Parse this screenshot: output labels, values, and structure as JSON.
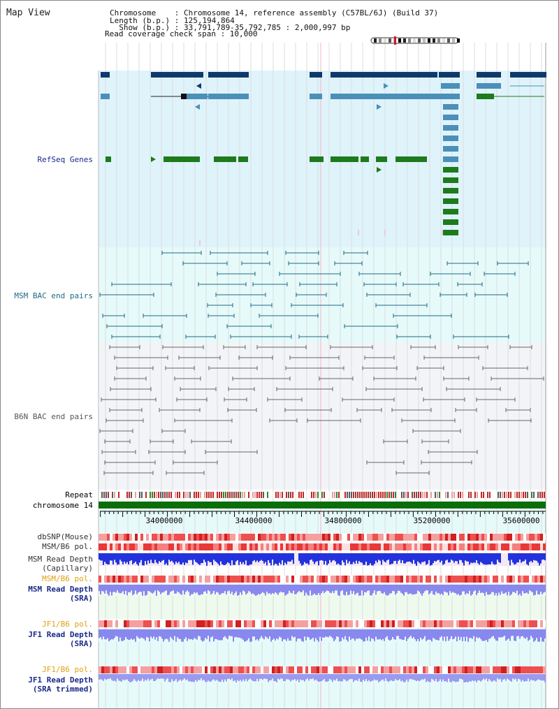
{
  "title": "Map View",
  "header": {
    "chromosome_line": "Chromosome    : Chromosome 14, reference assembly (C57BL/6J) (Build 37)",
    "length_line": "Length (b.p.) : 125,194,864",
    "show_line": "  Show (b.p.) : 33,791,789-35,792,785 : 2,000,997 bp",
    "read_coverage_line": "Read coverage check span : 10,000"
  },
  "tracks": {
    "refseq": "RefSeq Genes",
    "msm_bac": "MSM BAC end pairs",
    "b6n_bac": "B6N BAC end pairs",
    "repeat": "Repeat",
    "chromosome": "chromosome 14",
    "dbsnp": "dbSNP(Mouse)",
    "msm_b6_pol_1": "MSM/B6 pol.",
    "msm_read_depth_cap": "MSM Read Depth",
    "msm_read_depth_cap_sub": "(Capillary)",
    "msm_b6_pol_2": "MSM/B6 pol.",
    "msm_read_depth_sra": "MSM Read Depth",
    "msm_read_depth_sra_sub": "(SRA)",
    "jf1_b6_pol_1": "JF1/B6 pol.",
    "jf1_read_depth_sra": "JF1 Read Depth",
    "jf1_read_depth_sra_sub": "(SRA)",
    "jf1_b6_pol_2": "JF1/B6 pol.",
    "jf1_read_depth_trim": "JF1 Read Depth",
    "jf1_read_depth_trim_sub": "(SRA trimmed)"
  },
  "axis": {
    "range_bp": [
      33791789,
      35792785
    ],
    "ticks": [
      "34000000",
      "34400000",
      "34800000",
      "35200000",
      "35600000"
    ],
    "tick_values": [
      34000000,
      34400000,
      34800000,
      35200000,
      35600000
    ]
  },
  "colors": {
    "refseq_bg": "#dff3fb",
    "bac_bg": "#e6fafa",
    "b6n_bg": "#f2f4f8",
    "refseq_dark": "#0e3a6b",
    "refseq_mid": "#4a90b8",
    "refseq_green": "#1d7a1d",
    "bac_teal": "#1d6b85",
    "b6n_gray": "#666666",
    "chromosome_bar": "#0a6e0a",
    "depth_blue": "#2233dd",
    "depth_light": "#8888ee",
    "pol_red": "#e84040",
    "label_navy": "#1a2a8a",
    "label_orange": "#e0a010",
    "label_teal": "#1d6b85"
  }
}
